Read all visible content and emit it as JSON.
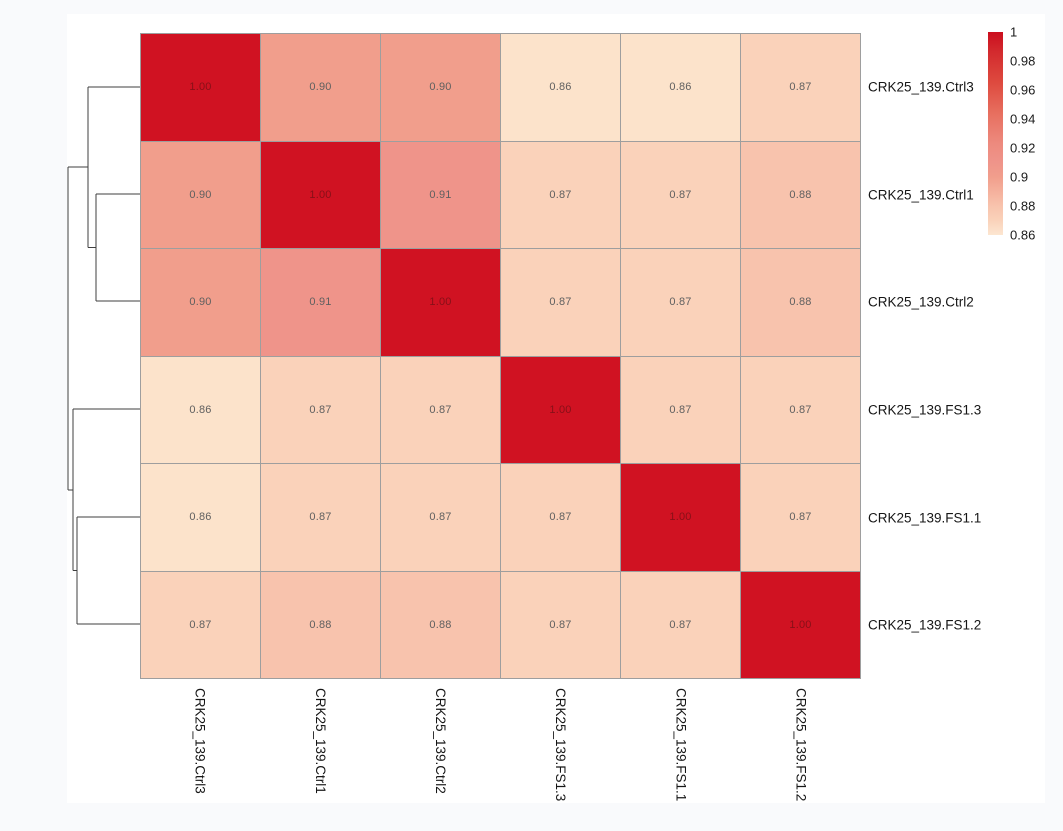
{
  "figure": {
    "background_color": "#f9fafc",
    "panel_background_color": "#ffffff",
    "legend_position": "top-right"
  },
  "chart_data": {
    "type": "heatmap",
    "title": "",
    "description": "Sample correlation clustermap with row dendrogram",
    "rows": [
      "CRK25_139.Ctrl3",
      "CRK25_139.Ctrl1",
      "CRK25_139.Ctrl2",
      "CRK25_139.FS1.3",
      "CRK25_139.FS1.1",
      "CRK25_139.FS1.2"
    ],
    "columns": [
      "CRK25_139.Ctrl3",
      "CRK25_139.Ctrl1",
      "CRK25_139.Ctrl2",
      "CRK25_139.FS1.3",
      "CRK25_139.FS1.1",
      "CRK25_139.FS1.2"
    ],
    "matrix": [
      [
        1.0,
        0.9,
        0.9,
        0.86,
        0.86,
        0.87
      ],
      [
        0.9,
        1.0,
        0.91,
        0.87,
        0.87,
        0.88
      ],
      [
        0.9,
        0.91,
        1.0,
        0.87,
        0.87,
        0.88
      ],
      [
        0.86,
        0.87,
        0.87,
        1.0,
        0.87,
        0.87
      ],
      [
        0.86,
        0.87,
        0.87,
        0.87,
        1.0,
        0.87
      ],
      [
        0.87,
        0.88,
        0.88,
        0.87,
        0.87,
        1.0
      ]
    ],
    "cell_value_decimals": 2,
    "grid_color": "#9e9e9e",
    "cell_text_color": "#5f5f5f",
    "diagonal_cell_text_color": "#871018",
    "value_colors": {
      "0.86": "#fce3cb",
      "0.87": "#fad2ba",
      "0.88": "#f8c3ad",
      "0.90": "#f19e8c",
      "0.91": "#ef948a",
      "1.00": "#d01222"
    },
    "colorbar": {
      "min": 0.86,
      "max": 1,
      "tick_labels": [
        "1",
        "0.98",
        "0.96",
        "0.94",
        "0.92",
        "0.9",
        "0.88",
        "0.86"
      ],
      "gradient_stops": [
        {
          "pos": 0.0,
          "color": "#cb0e1e"
        },
        {
          "pos": 0.1,
          "color": "#d32b2e"
        },
        {
          "pos": 0.25,
          "color": "#de4a3f"
        },
        {
          "pos": 0.4,
          "color": "#e76f5f"
        },
        {
          "pos": 0.55,
          "color": "#ed8a7e"
        },
        {
          "pos": 0.643,
          "color": "#ef948a"
        },
        {
          "pos": 0.714,
          "color": "#f19e8c"
        },
        {
          "pos": 0.857,
          "color": "#f8c3ad"
        },
        {
          "pos": 0.929,
          "color": "#fad2ba"
        },
        {
          "pos": 1.0,
          "color": "#fce6d1"
        }
      ]
    },
    "row_dendrogram": {
      "structure_newick": "((Ctrl3,(Ctrl1,Ctrl2)),(FS1.3,(FS1.1,FS1.2)))",
      "line_color": "#3f3f3f",
      "line_width": 1.4,
      "segments": [
        [
          88,
          87,
          140,
          87
        ],
        [
          96,
          194,
          140,
          194
        ],
        [
          96,
          301,
          140,
          301
        ],
        [
          96,
          194,
          96,
          301
        ],
        [
          88,
          247.5,
          96,
          247.5
        ],
        [
          88,
          87,
          88,
          247.5
        ],
        [
          68,
          167,
          88,
          167
        ],
        [
          68,
          167,
          68,
          490
        ],
        [
          68,
          490,
          73,
          490
        ],
        [
          73,
          409,
          73,
          570.5
        ],
        [
          73,
          409,
          140,
          409
        ],
        [
          73,
          570.5,
          77,
          570.5
        ],
        [
          77,
          517,
          77,
          624
        ],
        [
          77,
          517,
          140,
          517
        ],
        [
          77,
          624,
          140,
          624
        ]
      ]
    }
  }
}
